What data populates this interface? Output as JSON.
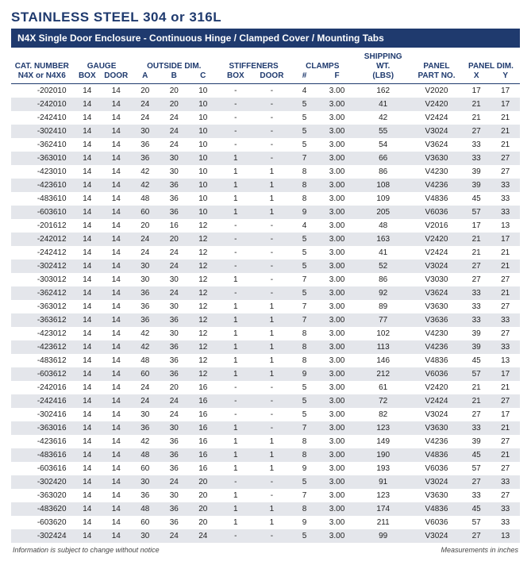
{
  "header": {
    "title": "STAINLESS STEEL 304 or 316L",
    "subtitle": "N4X Single Door Enclosure - Continuous Hinge / Clamped Cover / Mounting Tabs"
  },
  "columns": {
    "groups": [
      "CAT. NUMBER",
      "GAUGE",
      "OUTSIDE DIM.",
      "STIFFENERS",
      "CLAMPS",
      "SHIPPING WT.",
      "PANEL",
      "PANEL DIM."
    ],
    "subs": [
      "N4X or N4X6",
      "BOX",
      "DOOR",
      "A",
      "B",
      "C",
      "BOX",
      "DOOR",
      "#",
      "F",
      "(LBS)",
      "PART NO.",
      "X",
      "Y"
    ]
  },
  "rows": [
    [
      "-202010",
      "14",
      "14",
      "20",
      "20",
      "10",
      "-",
      "-",
      "4",
      "3.00",
      "162",
      "V2020",
      "17",
      "17"
    ],
    [
      "-242010",
      "14",
      "14",
      "24",
      "20",
      "10",
      "-",
      "-",
      "5",
      "3.00",
      "41",
      "V2420",
      "21",
      "17"
    ],
    [
      "-242410",
      "14",
      "14",
      "24",
      "24",
      "10",
      "-",
      "-",
      "5",
      "3.00",
      "42",
      "V2424",
      "21",
      "21"
    ],
    [
      "-302410",
      "14",
      "14",
      "30",
      "24",
      "10",
      "-",
      "-",
      "5",
      "3.00",
      "55",
      "V3024",
      "27",
      "21"
    ],
    [
      "-362410",
      "14",
      "14",
      "36",
      "24",
      "10",
      "-",
      "-",
      "5",
      "3.00",
      "54",
      "V3624",
      "33",
      "21"
    ],
    [
      "-363010",
      "14",
      "14",
      "36",
      "30",
      "10",
      "1",
      "-",
      "7",
      "3.00",
      "66",
      "V3630",
      "33",
      "27"
    ],
    [
      "-423010",
      "14",
      "14",
      "42",
      "30",
      "10",
      "1",
      "1",
      "8",
      "3.00",
      "86",
      "V4230",
      "39",
      "27"
    ],
    [
      "-423610",
      "14",
      "14",
      "42",
      "36",
      "10",
      "1",
      "1",
      "8",
      "3.00",
      "108",
      "V4236",
      "39",
      "33"
    ],
    [
      "-483610",
      "14",
      "14",
      "48",
      "36",
      "10",
      "1",
      "1",
      "8",
      "3.00",
      "109",
      "V4836",
      "45",
      "33"
    ],
    [
      "-603610",
      "14",
      "14",
      "60",
      "36",
      "10",
      "1",
      "1",
      "9",
      "3.00",
      "205",
      "V6036",
      "57",
      "33"
    ],
    [
      "-201612",
      "14",
      "14",
      "20",
      "16",
      "12",
      "-",
      "-",
      "4",
      "3.00",
      "48",
      "V2016",
      "17",
      "13"
    ],
    [
      "-242012",
      "14",
      "14",
      "24",
      "20",
      "12",
      "-",
      "-",
      "5",
      "3.00",
      "163",
      "V2420",
      "21",
      "17"
    ],
    [
      "-242412",
      "14",
      "14",
      "24",
      "24",
      "12",
      "-",
      "-",
      "5",
      "3.00",
      "41",
      "V2424",
      "21",
      "21"
    ],
    [
      "-302412",
      "14",
      "14",
      "30",
      "24",
      "12",
      "-",
      "-",
      "5",
      "3.00",
      "52",
      "V3024",
      "27",
      "21"
    ],
    [
      "-303012",
      "14",
      "14",
      "30",
      "30",
      "12",
      "1",
      "-",
      "7",
      "3.00",
      "86",
      "V3030",
      "27",
      "27"
    ],
    [
      "-362412",
      "14",
      "14",
      "36",
      "24",
      "12",
      "-",
      "-",
      "5",
      "3.00",
      "92",
      "V3624",
      "33",
      "21"
    ],
    [
      "-363012",
      "14",
      "14",
      "36",
      "30",
      "12",
      "1",
      "1",
      "7",
      "3.00",
      "89",
      "V3630",
      "33",
      "27"
    ],
    [
      "-363612",
      "14",
      "14",
      "36",
      "36",
      "12",
      "1",
      "1",
      "7",
      "3.00",
      "77",
      "V3636",
      "33",
      "33"
    ],
    [
      "-423012",
      "14",
      "14",
      "42",
      "30",
      "12",
      "1",
      "1",
      "8",
      "3.00",
      "102",
      "V4230",
      "39",
      "27"
    ],
    [
      "-423612",
      "14",
      "14",
      "42",
      "36",
      "12",
      "1",
      "1",
      "8",
      "3.00",
      "113",
      "V4236",
      "39",
      "33"
    ],
    [
      "-483612",
      "14",
      "14",
      "48",
      "36",
      "12",
      "1",
      "1",
      "8",
      "3.00",
      "146",
      "V4836",
      "45",
      "13"
    ],
    [
      "-603612",
      "14",
      "14",
      "60",
      "36",
      "12",
      "1",
      "1",
      "9",
      "3.00",
      "212",
      "V6036",
      "57",
      "17"
    ],
    [
      "-242016",
      "14",
      "14",
      "24",
      "20",
      "16",
      "-",
      "-",
      "5",
      "3.00",
      "61",
      "V2420",
      "21",
      "21"
    ],
    [
      "-242416",
      "14",
      "14",
      "24",
      "24",
      "16",
      "-",
      "-",
      "5",
      "3.00",
      "72",
      "V2424",
      "21",
      "27"
    ],
    [
      "-302416",
      "14",
      "14",
      "30",
      "24",
      "16",
      "-",
      "-",
      "5",
      "3.00",
      "82",
      "V3024",
      "27",
      "17"
    ],
    [
      "-363016",
      "14",
      "14",
      "36",
      "30",
      "16",
      "1",
      "-",
      "7",
      "3.00",
      "123",
      "V3630",
      "33",
      "21"
    ],
    [
      "-423616",
      "14",
      "14",
      "42",
      "36",
      "16",
      "1",
      "1",
      "8",
      "3.00",
      "149",
      "V4236",
      "39",
      "27"
    ],
    [
      "-483616",
      "14",
      "14",
      "48",
      "36",
      "16",
      "1",
      "1",
      "8",
      "3.00",
      "190",
      "V4836",
      "45",
      "21"
    ],
    [
      "-603616",
      "14",
      "14",
      "60",
      "36",
      "16",
      "1",
      "1",
      "9",
      "3.00",
      "193",
      "V6036",
      "57",
      "27"
    ],
    [
      "-302420",
      "14",
      "14",
      "30",
      "24",
      "20",
      "-",
      "-",
      "5",
      "3.00",
      "91",
      "V3024",
      "27",
      "33"
    ],
    [
      "-363020",
      "14",
      "14",
      "36",
      "30",
      "20",
      "1",
      "-",
      "7",
      "3.00",
      "123",
      "V3630",
      "33",
      "27"
    ],
    [
      "-483620",
      "14",
      "14",
      "48",
      "36",
      "20",
      "1",
      "1",
      "8",
      "3.00",
      "174",
      "V4836",
      "45",
      "33"
    ],
    [
      "-603620",
      "14",
      "14",
      "60",
      "36",
      "20",
      "1",
      "1",
      "9",
      "3.00",
      "211",
      "V6036",
      "57",
      "33"
    ],
    [
      "-302424",
      "14",
      "14",
      "30",
      "24",
      "24",
      "-",
      "-",
      "5",
      "3.00",
      "99",
      "V3024",
      "27",
      "13"
    ]
  ],
  "footer": {
    "left": "Information is subject to change without notice",
    "right": "Measurements in inches"
  },
  "style": {
    "header_color": "#1f3a6e",
    "row_even_bg": "#e4e6eb",
    "row_odd_bg": "#ffffff",
    "text_color": "#222222"
  }
}
